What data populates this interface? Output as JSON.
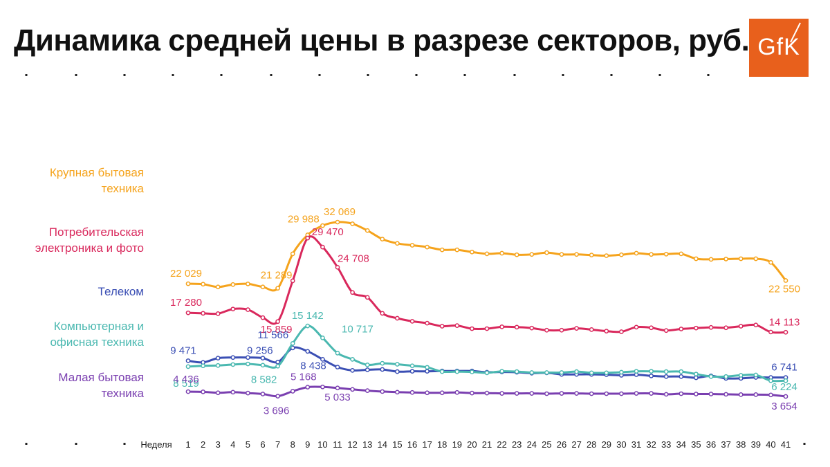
{
  "title": "Динамика средней цены в разрезе секторов, руб.",
  "logo": {
    "text": "GfK",
    "color": "#e8601c"
  },
  "chart_data": {
    "type": "line",
    "xlabel": "Неделя",
    "x": [
      1,
      2,
      3,
      4,
      5,
      6,
      7,
      8,
      9,
      10,
      11,
      12,
      13,
      14,
      15,
      16,
      17,
      18,
      19,
      20,
      21,
      22,
      23,
      24,
      25,
      26,
      27,
      28,
      29,
      30,
      31,
      32,
      33,
      34,
      35,
      36,
      37,
      38,
      39,
      40,
      41
    ],
    "ylabel": "",
    "series": [
      {
        "name": "Крупная бытовая техника",
        "label_lines": [
          "Крупная бытовая",
          "техника"
        ],
        "color": "#f5a31c",
        "values": [
          22029,
          21950,
          21500,
          21900,
          22000,
          21500,
          21289,
          26900,
          29988,
          31500,
          32069,
          31800,
          30700,
          29300,
          28600,
          28300,
          28000,
          27550,
          27550,
          27200,
          26900,
          27000,
          26750,
          26800,
          27100,
          26800,
          26800,
          26700,
          26600,
          26750,
          27000,
          26800,
          26850,
          26900,
          26100,
          26000,
          26050,
          26100,
          26100,
          25500,
          22550
        ],
        "labels": [
          {
            "i": 0,
            "text": "22 029"
          },
          {
            "i": 6,
            "text": "21 289"
          },
          {
            "i": 8,
            "text": "29 988"
          },
          {
            "i": 10,
            "text": "32 069"
          },
          {
            "i": 40,
            "text": "22 550"
          }
        ]
      },
      {
        "name": "Потребительская электроника и фото",
        "label_lines": [
          "Потребительская",
          "электроника и фото"
        ],
        "color": "#d9285c",
        "values": [
          17280,
          17200,
          17150,
          17900,
          17800,
          16500,
          15859,
          22500,
          29470,
          28000,
          24708,
          20600,
          19800,
          17200,
          16400,
          15900,
          15600,
          15100,
          15200,
          14700,
          14700,
          15000,
          14950,
          14800,
          14450,
          14450,
          14750,
          14550,
          14300,
          14200,
          14950,
          14850,
          14400,
          14650,
          14800,
          14900,
          14850,
          15100,
          15300,
          14150,
          14113
        ],
        "labels": [
          {
            "i": 0,
            "text": "17 280"
          },
          {
            "i": 6,
            "text": "15 859"
          },
          {
            "i": 8,
            "text": "29 470"
          },
          {
            "i": 10,
            "text": "24 708"
          },
          {
            "i": 40,
            "text": "14 113"
          }
        ]
      },
      {
        "name": "Телеком",
        "label_lines": [
          "Телеком"
        ],
        "color": "#3b4fb4",
        "values": [
          9471,
          9200,
          9900,
          10000,
          10000,
          9900,
          9256,
          11566,
          11000,
          9700,
          8438,
          7900,
          8000,
          8050,
          7700,
          7750,
          7750,
          7800,
          7800,
          7800,
          7600,
          7650,
          7600,
          7450,
          7500,
          7250,
          7250,
          7250,
          7200,
          7100,
          7200,
          7000,
          6900,
          6900,
          6700,
          7000,
          6600,
          6600,
          6750,
          6741,
          6741
        ],
        "labels": [
          {
            "i": 0,
            "text": "9 471"
          },
          {
            "i": 6,
            "text": "9 256"
          },
          {
            "i": 7,
            "text": "11 566"
          },
          {
            "i": 10,
            "text": "8 438"
          },
          {
            "i": 40,
            "text": "6 741"
          }
        ]
      },
      {
        "name": "Компьютерная и офисная техника",
        "label_lines": [
          "Компьютерная и",
          "офисная техника"
        ],
        "color": "#4ab8b0",
        "values": [
          8519,
          8650,
          8700,
          8850,
          8950,
          8750,
          8582,
          12300,
          15142,
          13200,
          10717,
          9700,
          8800,
          9050,
          8900,
          8650,
          8400,
          7700,
          7700,
          7650,
          7500,
          7750,
          7700,
          7550,
          7550,
          7550,
          7700,
          7500,
          7500,
          7600,
          7750,
          7750,
          7700,
          7700,
          7300,
          6900,
          6900,
          7100,
          7150,
          6224,
          6224
        ],
        "labels": [
          {
            "i": 0,
            "text": "8 519"
          },
          {
            "i": 6,
            "text": "8 582"
          },
          {
            "i": 8,
            "text": "15 142"
          },
          {
            "i": 10,
            "text": "10 717"
          },
          {
            "i": 40,
            "text": "6 224"
          }
        ]
      },
      {
        "name": "Малая бытовая техника",
        "label_lines": [
          "Малая бытовая",
          "техника"
        ],
        "color": "#7a3fb0",
        "values": [
          4436,
          4400,
          4250,
          4350,
          4200,
          4050,
          3696,
          4500,
          5168,
          5200,
          5033,
          4800,
          4600,
          4450,
          4350,
          4300,
          4250,
          4250,
          4300,
          4200,
          4200,
          4150,
          4150,
          4150,
          4100,
          4150,
          4150,
          4100,
          4100,
          4100,
          4150,
          4150,
          4000,
          4100,
          4050,
          4050,
          4000,
          3950,
          3950,
          3900,
          3654
        ],
        "labels": [
          {
            "i": 0,
            "text": "4 436"
          },
          {
            "i": 6,
            "text": "3 696"
          },
          {
            "i": 8,
            "text": "5 168"
          },
          {
            "i": 10,
            "text": "5 033"
          },
          {
            "i": 40,
            "text": "3 654"
          }
        ]
      }
    ]
  }
}
